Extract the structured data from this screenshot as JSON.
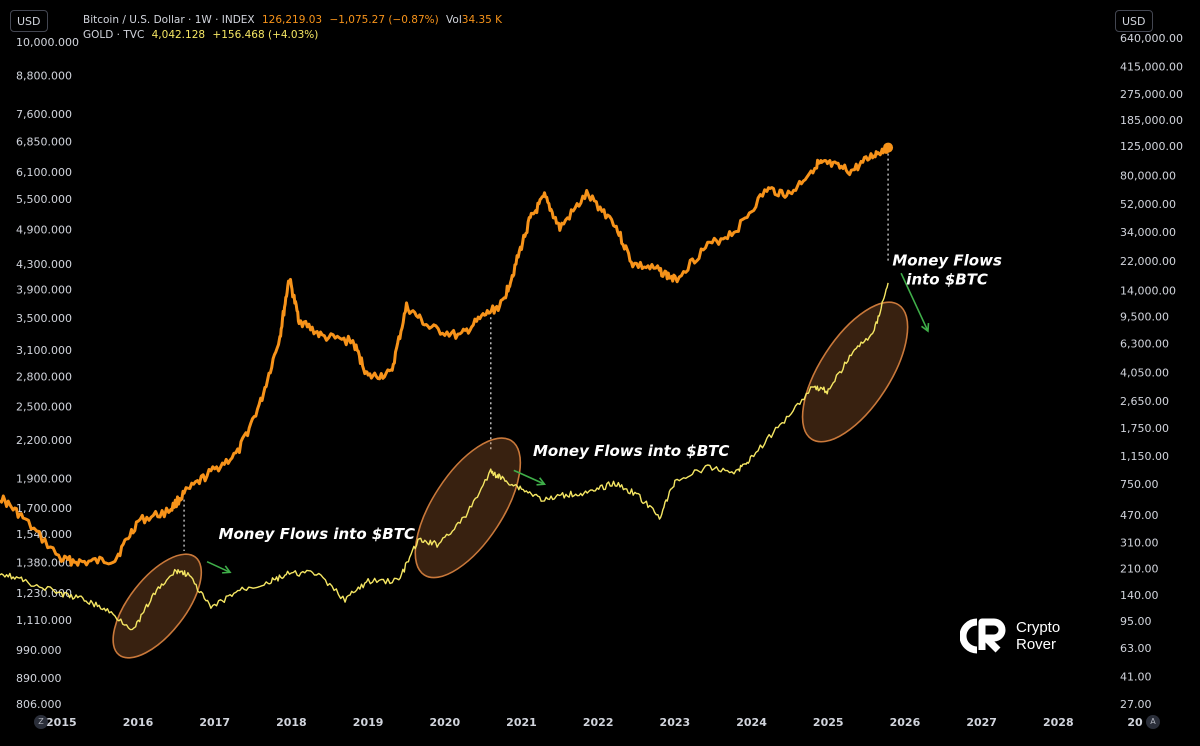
{
  "header": {
    "btc_line": {
      "label": "Bitcoin / U.S. Dollar · 1W · INDEX",
      "price": "126,219.03",
      "change": "−1,075.27 (−0.87%)",
      "vol_label": "Vol",
      "vol_value": "34.35 K"
    },
    "gold_line": {
      "label": "GOLD · TVC",
      "price": "4,042.128",
      "change": "+156.468 (+4.03%)"
    }
  },
  "left_currency": "USD",
  "right_currency": "USD",
  "corner_left": "Z",
  "corner_right": "A",
  "logo": {
    "line1": "Crypto",
    "line2": "Rover"
  },
  "colors": {
    "btc": "#f7931a",
    "gold": "#f5e663",
    "annotation_arrow": "#3fae49",
    "ellipse": "#c9783a",
    "background": "#000000"
  },
  "chart_data": {
    "type": "line",
    "x_axis": {
      "ticks": [
        "2015",
        "2016",
        "2017",
        "2018",
        "2019",
        "2020",
        "2021",
        "2022",
        "2023",
        "2024",
        "2025",
        "2026",
        "2027",
        "2028",
        "20"
      ],
      "range": [
        2014.2,
        2028.7
      ]
    },
    "left_axis": {
      "scale": "log",
      "series": "GOLD",
      "ticks": [
        "10,000.000",
        "8,800.000",
        "7,600.000",
        "6,850.000",
        "6,100.000",
        "5,500.000",
        "4,900.000",
        "4,300.000",
        "3,900.000",
        "3,500.000",
        "3,100.000",
        "2,800.000",
        "2,500.000",
        "2,200.000",
        "1,900.000",
        "1,700.000",
        "1,540.000",
        "1,380.000",
        "1,230.000",
        "1,110.000",
        "990.000",
        "890.000",
        "806.000"
      ]
    },
    "right_axis": {
      "scale": "log",
      "series": "Bitcoin",
      "ticks": [
        "640,000.00",
        "415,000.00",
        "275,000.00",
        "185,000.00",
        "125,000.00",
        "80,000.00",
        "52,000.00",
        "34,000.00",
        "22,000.00",
        "14,000.00",
        "9,500.00",
        "6,300.00",
        "4,050.00",
        "2,650.00",
        "1,750.00",
        "1,150.00",
        "750.00",
        "470.00",
        "310.00",
        "210.00",
        "140.00",
        "95.00",
        "63.00",
        "41.00",
        "27.00"
      ]
    },
    "series": [
      {
        "name": "GOLD",
        "axis": "left",
        "x": [
          2014.2,
          2014.5,
          2015.0,
          2015.3,
          2015.6,
          2015.95,
          2016.2,
          2016.5,
          2016.65,
          2016.95,
          2017.3,
          2017.7,
          2017.95,
          2018.3,
          2018.7,
          2019.0,
          2019.4,
          2019.65,
          2019.9,
          2020.25,
          2020.6,
          2020.75,
          2021.0,
          2021.3,
          2021.6,
          2021.9,
          2022.2,
          2022.5,
          2022.8,
          2023.0,
          2023.4,
          2023.8,
          2024.0,
          2024.4,
          2024.8,
          2025.0,
          2025.3,
          2025.6,
          2025.78
        ],
        "y": [
          1330,
          1290,
          1225,
          1200,
          1150,
          1070,
          1220,
          1340,
          1320,
          1160,
          1240,
          1280,
          1320,
          1330,
          1200,
          1285,
          1290,
          1500,
          1480,
          1630,
          1950,
          1900,
          1830,
          1750,
          1790,
          1800,
          1870,
          1790,
          1640,
          1880,
          1980,
          1950,
          2060,
          2350,
          2700,
          2650,
          3050,
          3330,
          4000
        ]
      },
      {
        "name": "Bitcoin",
        "axis": "right",
        "x": [
          2014.2,
          2014.5,
          2015.0,
          2015.3,
          2015.7,
          2016.0,
          2016.4,
          2016.6,
          2016.95,
          2017.3,
          2017.6,
          2017.85,
          2017.97,
          2018.1,
          2018.4,
          2018.8,
          2019.0,
          2019.3,
          2019.5,
          2019.8,
          2020.2,
          2020.5,
          2020.75,
          2020.9,
          2021.1,
          2021.3,
          2021.5,
          2021.85,
          2022.2,
          2022.45,
          2022.8,
          2023.0,
          2023.4,
          2023.8,
          2024.2,
          2024.5,
          2024.85,
          2025.0,
          2025.3,
          2025.6,
          2025.78
        ],
        "y": [
          620,
          450,
          240,
          230,
          240,
          430,
          500,
          650,
          900,
          1200,
          2600,
          7000,
          17000,
          9000,
          7000,
          6500,
          3800,
          4000,
          11000,
          8000,
          7000,
          9500,
          11500,
          19000,
          40000,
          58000,
          36000,
          60000,
          40000,
          21000,
          19000,
          16500,
          27000,
          35000,
          65000,
          60000,
          95000,
          95000,
          85000,
          110000,
          122000
        ]
      }
    ],
    "annotations": [
      {
        "text": "Money Flows into $BTC"
      },
      {
        "text": "Money Flows into $BTC"
      },
      {
        "text": "Money Flows\ninto $BTC"
      }
    ],
    "grid": false,
    "legend": "top-left"
  }
}
